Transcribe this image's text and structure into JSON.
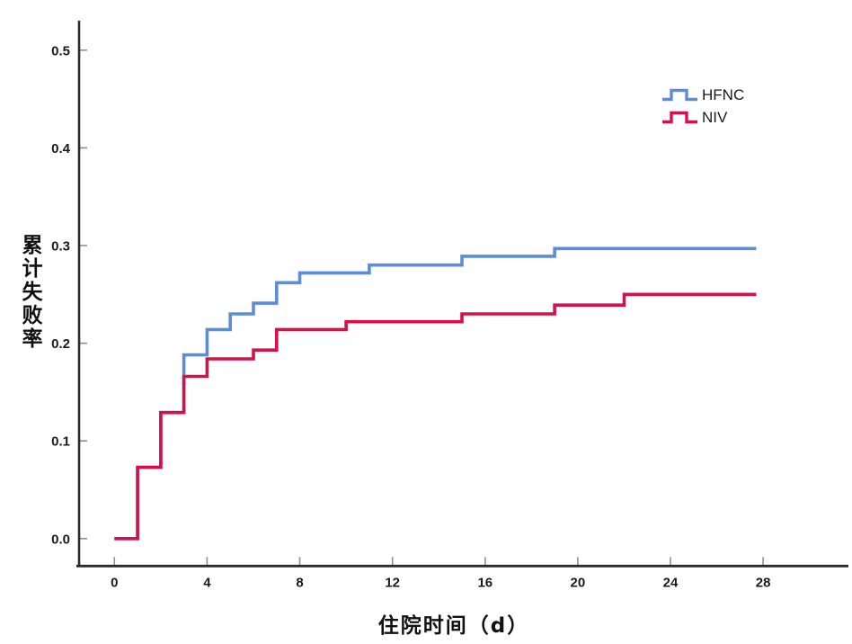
{
  "page": {
    "background": "#ffffff"
  },
  "axes": {
    "line_color": "#2b2b2b",
    "tick_color": "#8f8f8f",
    "label_color": "#1a1a1a"
  },
  "chart_data": {
    "type": "line",
    "subtype": "step-survival",
    "title": "",
    "xlabel": "住院时间（d）",
    "ylabel": "累计失败率",
    "xlim": [
      -1.5,
      31.7
    ],
    "ylim": [
      -0.03,
      0.53
    ],
    "xticks": [
      "0",
      "4",
      "8",
      "12",
      "16",
      "20",
      "24",
      "28"
    ],
    "yticks": [
      "0.0",
      "0.1",
      "0.2",
      "0.3",
      "0.4",
      "0.5"
    ],
    "grid": false,
    "legend_position": "top-right-inside",
    "series": [
      {
        "name": "HFNC",
        "color": "#5B8DD9",
        "steps": [
          [
            0,
            0.0
          ],
          [
            1,
            0.073
          ],
          [
            2,
            0.129
          ],
          [
            3,
            0.188
          ],
          [
            4,
            0.214
          ],
          [
            5,
            0.23
          ],
          [
            6,
            0.241
          ],
          [
            7,
            0.262
          ],
          [
            8,
            0.272
          ],
          [
            11,
            0.28
          ],
          [
            15,
            0.289
          ],
          [
            19,
            0.297
          ],
          [
            27.7,
            0.297
          ]
        ]
      },
      {
        "name": "NIV",
        "color": "#D6104A",
        "steps": [
          [
            0,
            0.0
          ],
          [
            1,
            0.073
          ],
          [
            2,
            0.129
          ],
          [
            3,
            0.166
          ],
          [
            4,
            0.184
          ],
          [
            6,
            0.193
          ],
          [
            7,
            0.214
          ],
          [
            10,
            0.222
          ],
          [
            15,
            0.23
          ],
          [
            19,
            0.239
          ],
          [
            22,
            0.25
          ],
          [
            27.7,
            0.25
          ]
        ]
      }
    ]
  }
}
